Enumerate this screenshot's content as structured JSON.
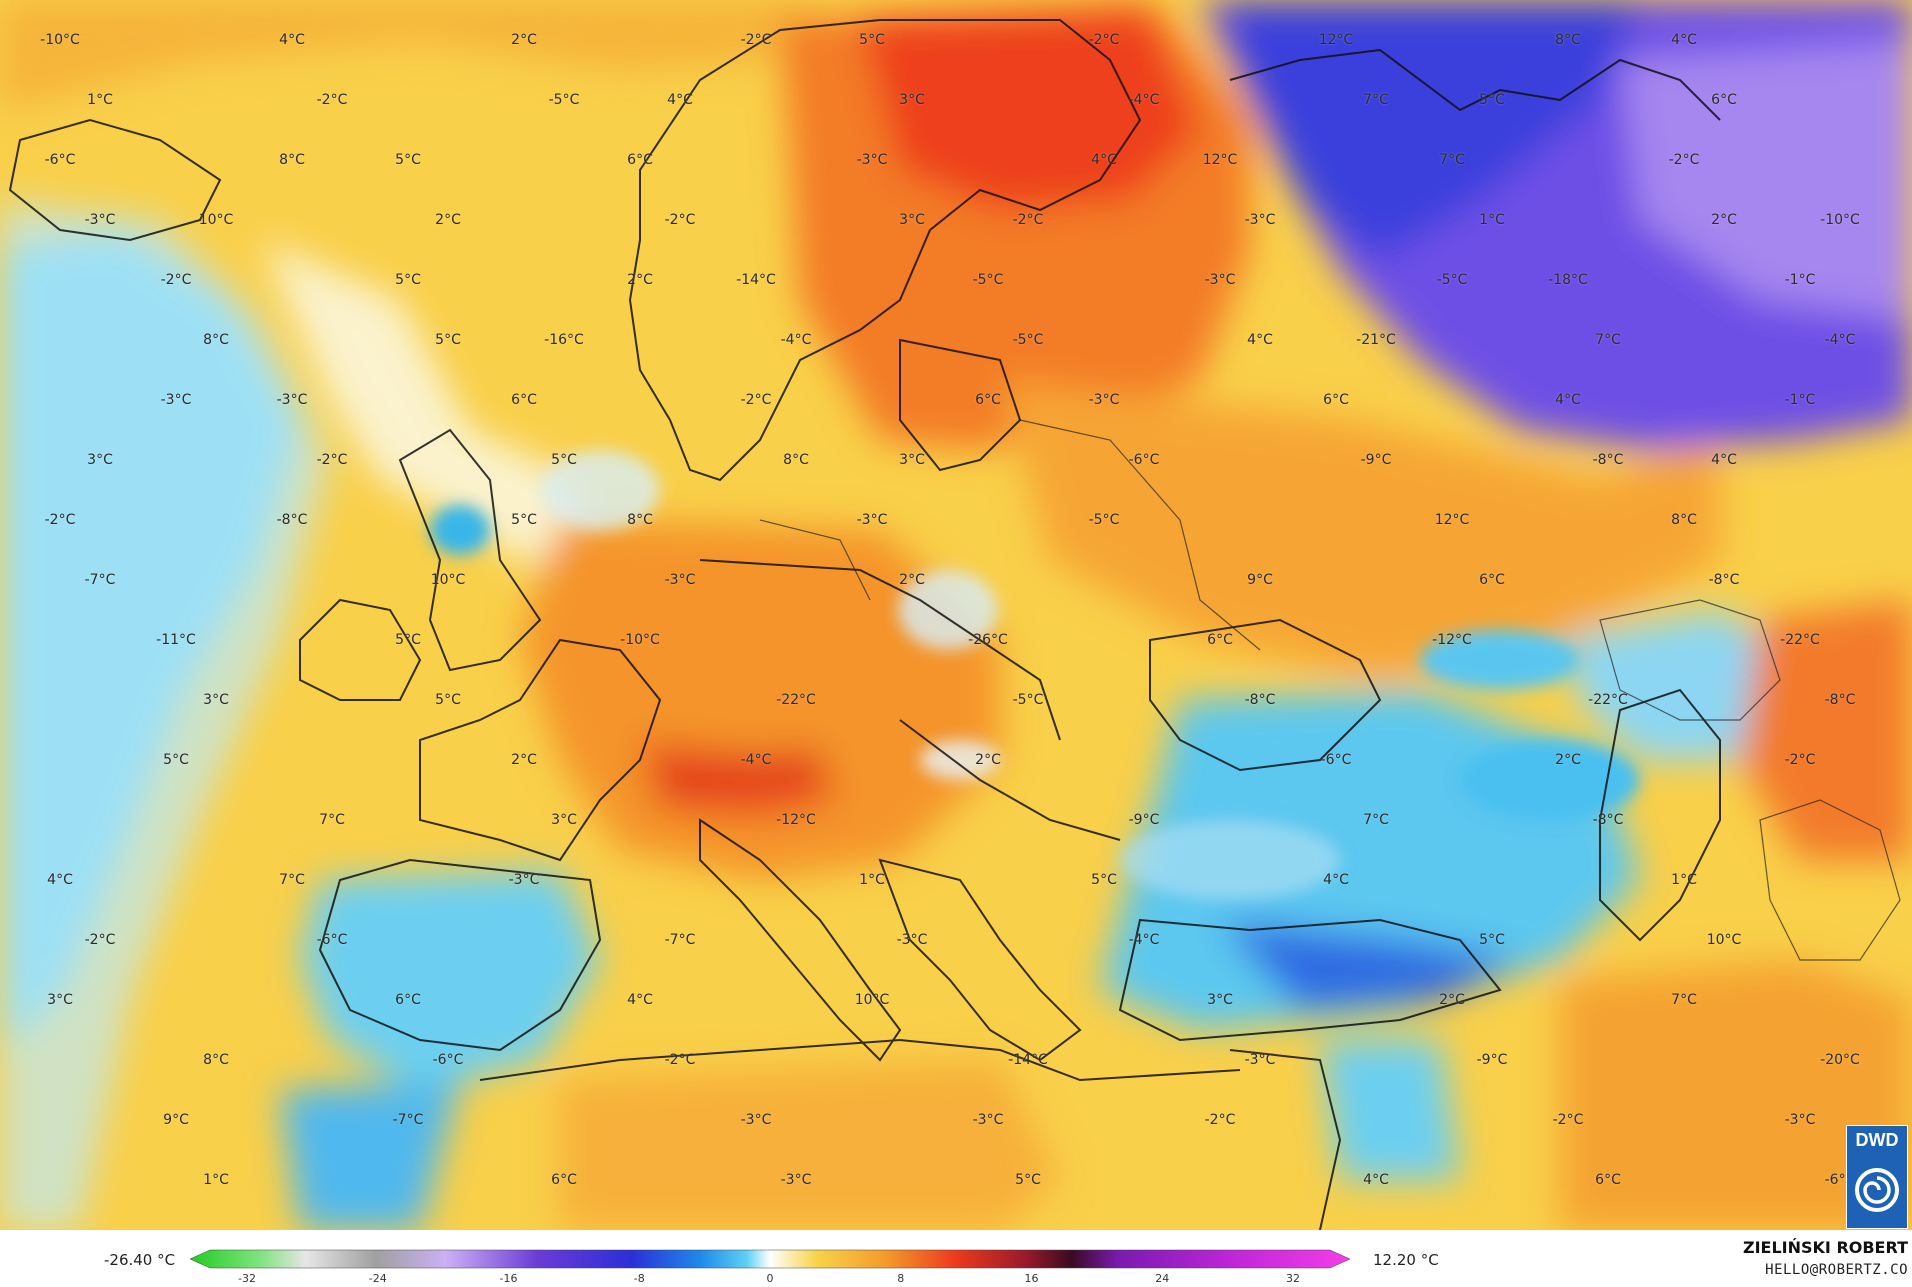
{
  "legend": {
    "min_label": "-26.40 °C",
    "max_label": "12.20 °C",
    "ticks": [
      "-32",
      "-24",
      "-16",
      "-8",
      "0",
      "8",
      "16",
      "24",
      "32"
    ]
  },
  "credits": {
    "author": "ZIELIŃSKI ROBERT",
    "email": "HELLO@ROBERTZ.CO",
    "logo_text": "DWD"
  },
  "colors": {
    "map_background": "#f9d44a",
    "cold_blue": "#3cc0f0",
    "freezing_purple": "#7a3de0",
    "warm_orange": "#f39a2a",
    "hot_red": "#f04a20"
  },
  "labels": [
    "-10°C",
    "5°C",
    "4°C",
    "4°C",
    "5°C",
    "5°C",
    "12°C",
    "10°C",
    "-2°C",
    "-10°C",
    "-14°C",
    "-18°C",
    "-16°C",
    "-21°C",
    "-3°C",
    "-3°C",
    "3°C",
    "3°C",
    "4°C",
    "8°C",
    "12°C",
    "10°C",
    "9°C",
    "-11°C",
    "-26°C",
    "-22°C",
    "-22°C",
    "-22°C",
    "2°C",
    "-6°C",
    "7°C",
    "-9°C",
    "4°C",
    "1°C",
    "1°C",
    "-7°C",
    "5°C",
    "6°C",
    "3°C",
    "8°C",
    "-14°C",
    "-20°C",
    "-3°C",
    "-2°C",
    "6°C",
    "4°C",
    "4°C",
    "-2°C",
    "1°C",
    "3°C",
    "6°C",
    "6°C",
    "7°C",
    "2°C",
    "-3°C",
    "-2°C",
    "-5°C",
    "-1°C",
    "-4°C",
    "7°C",
    "6°C",
    "6°C",
    "-2°C",
    "-6°C",
    "-2°C",
    "-3°C",
    "8°C",
    "-3°C",
    "6°C",
    "5°C",
    "6°C",
    "3°C",
    "-5°C",
    "-8°C",
    "-4°C",
    "2°C",
    "3°C",
    "7°C",
    "7°C",
    "5°C",
    "-2°C",
    "-3°C",
    "10°C",
    "4°C",
    "2°C",
    "-6°C",
    "-3°C",
    "9°C",
    "-3°C",
    "-3°C",
    "-3°C",
    "6°C",
    "2°C",
    "12°C",
    "-2°C",
    "-4°C",
    "-6°C",
    "-3°C",
    "-2°C",
    "-2°C",
    "1°C",
    "5°C",
    "-3°C",
    "8°C",
    "-5°C",
    "-4°C",
    "-2°C",
    "4°C",
    "5°C",
    "-9°C",
    "-8°C",
    "-5°C",
    "-7°C",
    "2°C",
    "-8°C",
    "-10°C",
    "-12°C",
    "5°C",
    "-8°C",
    "5°C",
    "2°C",
    "-2°C",
    "-12°C",
    "-8°C",
    "-3°C",
    "4°C",
    "-6°C",
    "-4°C",
    "3°C",
    "10°C",
    "7°C",
    "-2°C",
    "-9°C",
    "-7°C",
    "-2°C",
    "1°C",
    "5°C",
    "-6°C",
    "-2°C",
    "8°C",
    "-5°C",
    "7°C",
    "8°C",
    "4°C",
    "-3°C",
    "3°C",
    "2°C",
    "2°C",
    "-5°C",
    "5°C",
    "4°C",
    "-3°C",
    "6°C",
    "-1°C",
    "8°C",
    "-8°C",
    "5°C"
  ]
}
